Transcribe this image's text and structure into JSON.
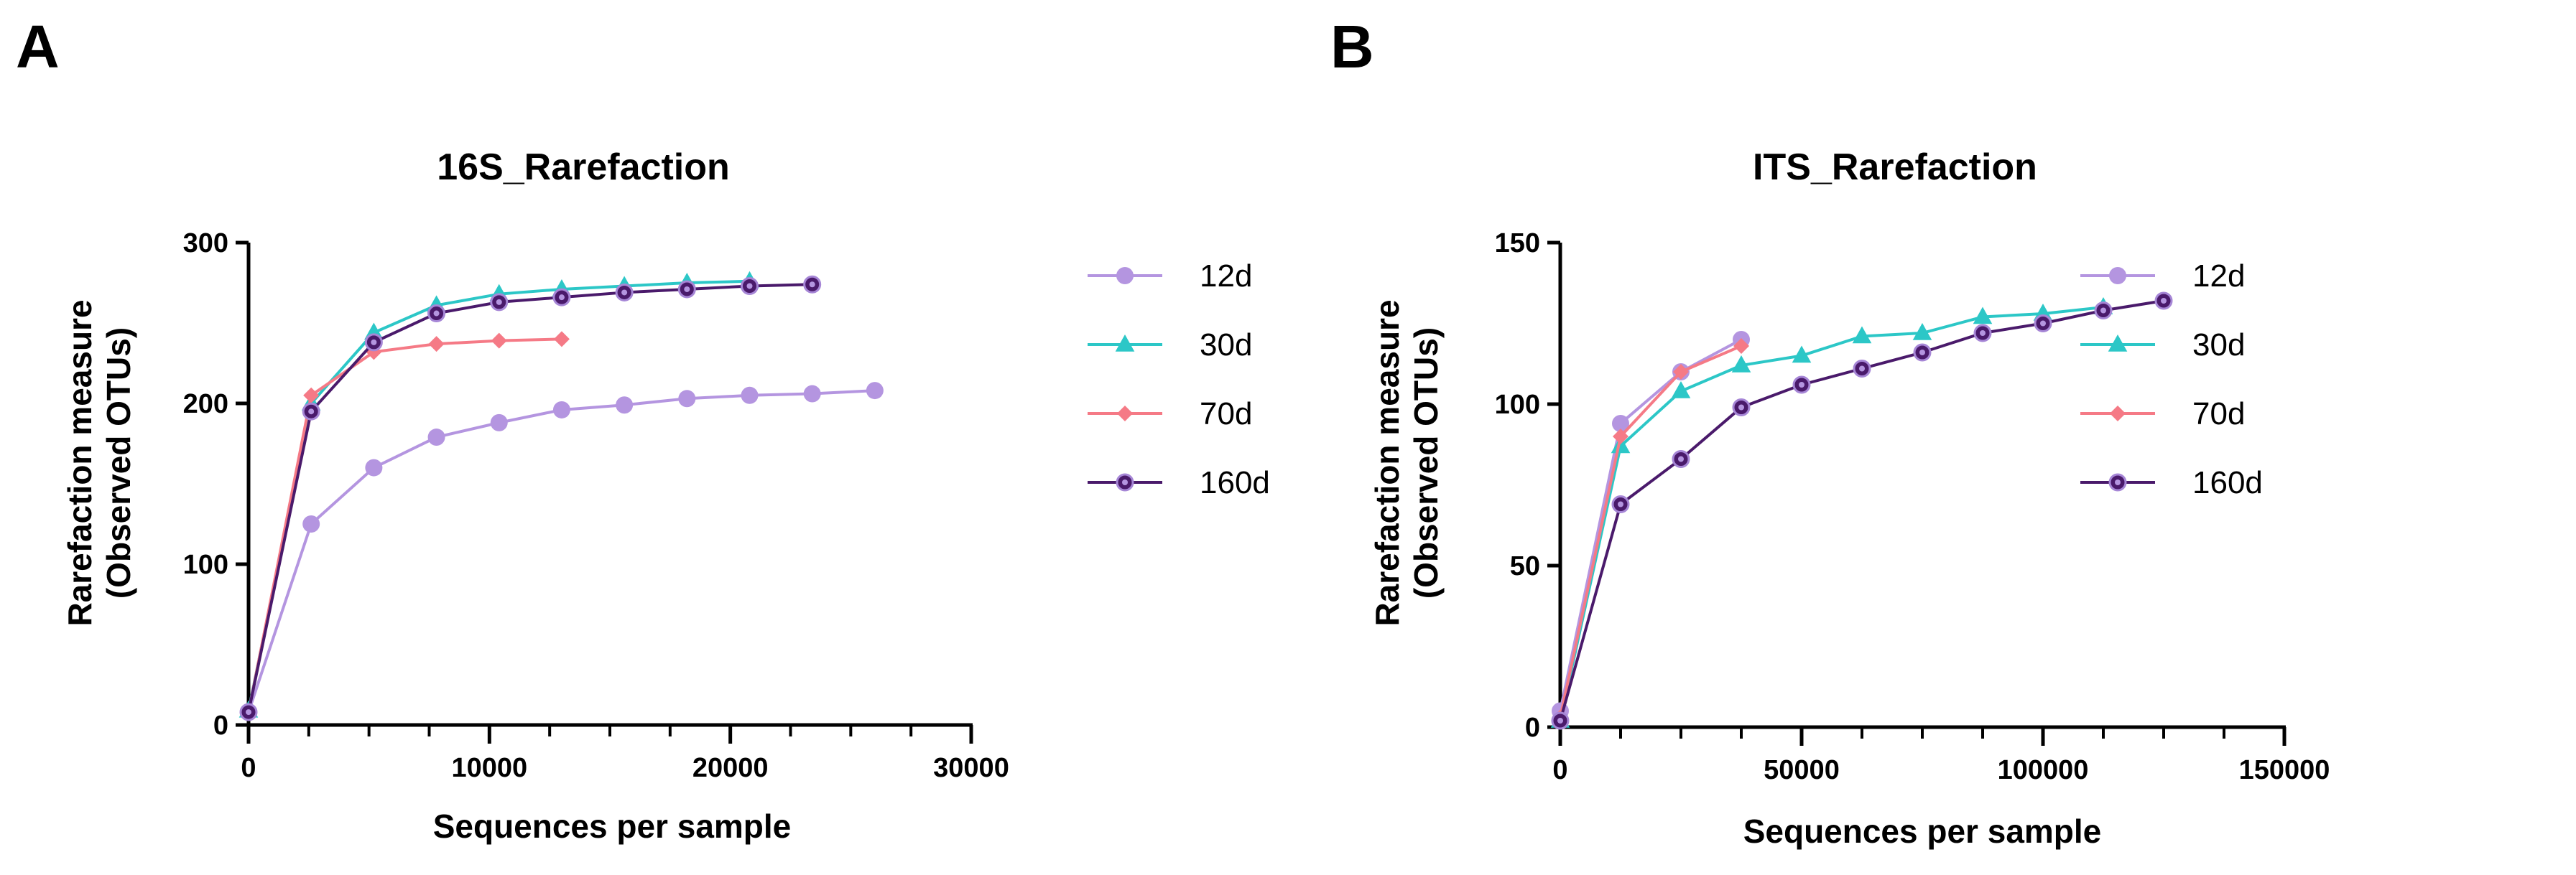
{
  "panels": {
    "a_label": "A",
    "b_label": "B"
  },
  "chart_data": [
    {
      "type": "line",
      "title": "16S_Rarefaction",
      "xlabel": "Sequences per sample",
      "ylabel_line1": "Rarefaction measure",
      "ylabel_line2": "(Observed OTUs)",
      "xlim": [
        0,
        30000
      ],
      "ylim": [
        0,
        300
      ],
      "xticks": [
        0,
        10000,
        20000,
        30000
      ],
      "yticks": [
        0,
        100,
        200,
        300
      ],
      "x_minor_step": 2500,
      "legend_position": "right",
      "series": [
        {
          "name": "12d",
          "color": "#b495e0",
          "marker": "circle",
          "x": [
            0,
            2600,
            5200,
            7800,
            10400,
            13000,
            15600,
            18200,
            20800,
            23400,
            26000
          ],
          "y": [
            8,
            125,
            160,
            179,
            188,
            196,
            199,
            203,
            205,
            206,
            208
          ]
        },
        {
          "name": "30d",
          "color": "#2cc7c7",
          "marker": "triangle",
          "x": [
            0,
            2600,
            5200,
            7800,
            10400,
            13000,
            15600,
            18200,
            20800
          ],
          "y": [
            9,
            200,
            244,
            261,
            268,
            271,
            273,
            275,
            276
          ]
        },
        {
          "name": "70d",
          "color": "#f57a86",
          "marker": "diamond",
          "x": [
            0,
            2600,
            5200,
            7800,
            10400,
            13000
          ],
          "y": [
            8,
            205,
            232,
            237,
            239,
            240
          ]
        },
        {
          "name": "160d",
          "color": "#4a1a6b",
          "marker": "circle-dot",
          "x": [
            0,
            2600,
            5200,
            7800,
            10400,
            13000,
            15600,
            18200,
            20800,
            23400
          ],
          "y": [
            8,
            195,
            238,
            256,
            263,
            266,
            269,
            271,
            273,
            274
          ]
        }
      ]
    },
    {
      "type": "line",
      "title": "ITS_Rarefaction",
      "xlabel": "Sequences per sample",
      "ylabel_line1": "Rarefaction measure",
      "ylabel_line2": "(Observed OTUs)",
      "xlim": [
        0,
        150000
      ],
      "ylim": [
        0,
        150
      ],
      "xticks": [
        0,
        50000,
        100000,
        150000
      ],
      "yticks": [
        0,
        50,
        100,
        150
      ],
      "x_minor_step": 12500,
      "legend_position": "right",
      "series": [
        {
          "name": "12d",
          "color": "#b495e0",
          "marker": "circle",
          "x": [
            0,
            12500,
            25000,
            37500
          ],
          "y": [
            5,
            94,
            110,
            120
          ]
        },
        {
          "name": "30d",
          "color": "#2cc7c7",
          "marker": "triangle",
          "x": [
            0,
            12500,
            25000,
            37500,
            50000,
            62500,
            75000,
            87500,
            100000,
            112500
          ],
          "y": [
            2,
            87,
            104,
            112,
            115,
            121,
            122,
            127,
            128,
            130
          ]
        },
        {
          "name": "70d",
          "color": "#f57a86",
          "marker": "diamond",
          "x": [
            0,
            12500,
            25000,
            37500
          ],
          "y": [
            3,
            90,
            110,
            118
          ]
        },
        {
          "name": "160d",
          "color": "#4a1a6b",
          "marker": "circle-dot",
          "x": [
            0,
            12500,
            25000,
            37500,
            50000,
            62500,
            75000,
            87500,
            100000,
            112500,
            125000
          ],
          "y": [
            2,
            69,
            83,
            99,
            106,
            111,
            116,
            122,
            125,
            129,
            132
          ]
        }
      ]
    }
  ]
}
